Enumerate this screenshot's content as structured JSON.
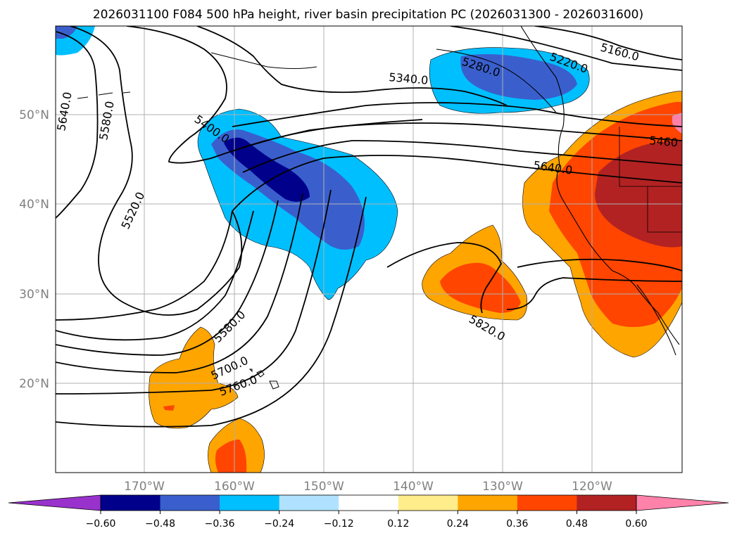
{
  "title": "2026031100 F084 500 hPa height, river basin precipitation PC (2026031300 - 2026031600)",
  "map": {
    "lon_labels": [
      "170°W",
      "160°W",
      "150°W",
      "140°W",
      "130°W",
      "120°W"
    ],
    "lat_labels": [
      "50°N",
      "40°N",
      "30°N",
      "20°N"
    ],
    "contour_labels": [
      "5160.0",
      "5220.0",
      "5280.0",
      "5340.0",
      "5400.0",
      "5460",
      "5520.0",
      "5580.0",
      "5640.0",
      "5580.0",
      "5640.0",
      "5700.0",
      "5760.0",
      "5820.0"
    ]
  },
  "colorbar": {
    "labels": [
      "−0.60",
      "−0.48",
      "−0.36",
      "−0.24",
      "−0.12",
      "0.12",
      "0.24",
      "0.36",
      "0.48",
      "0.60"
    ],
    "colors": [
      "#9932cc",
      "#00008b",
      "#3a5fcd",
      "#00bfff",
      "#b0e2ff",
      "#ffffff",
      "#ffec8b",
      "#ffa500",
      "#ff4500",
      "#b22222",
      "#ff82ab"
    ]
  }
}
